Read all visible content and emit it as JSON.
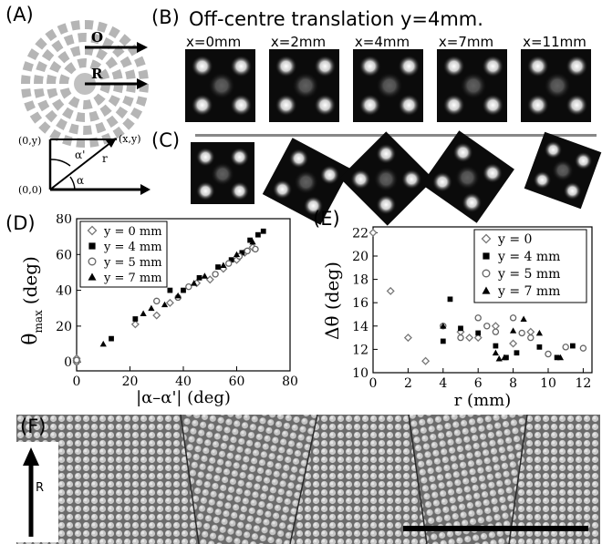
{
  "figure": {
    "panel_a": {
      "label": "(A)",
      "vector_o": "O",
      "vector_r": "R",
      "coords": {
        "oy": "(0,y)",
        "xy": "(x,y)",
        "origin": "(0,0)",
        "alpha_prime": "α'",
        "alpha": "α",
        "r": "r"
      }
    },
    "panel_b": {
      "label": "(B)",
      "title": "Off-centre translation y=4mm.",
      "x_labels": [
        "x=0mm",
        "x=2mm",
        "x=4mm",
        "x=7mm",
        "x=11mm"
      ]
    },
    "panel_c": {
      "label": "(C)",
      "rotations_deg": [
        0,
        28,
        45,
        35,
        20
      ]
    },
    "panel_f": {
      "label": "(F)",
      "arrow_label": "R"
    }
  },
  "chart_data": [
    {
      "type": "scatter",
      "panel": "(D)",
      "xlabel": "|α–α'| (deg)",
      "ylabel": "θmax (deg)",
      "xlim": [
        0,
        80
      ],
      "ylim": [
        -5,
        80
      ],
      "xticks": [
        0,
        20,
        40,
        60,
        80
      ],
      "yticks": [
        0,
        20,
        40,
        60,
        80
      ],
      "grid": false,
      "legend_position": "top-left",
      "series": [
        {
          "name": "y = 0 mm",
          "marker": "diamond-open",
          "points": [
            [
              0,
              1
            ],
            [
              0,
              0
            ],
            [
              0,
              2
            ],
            [
              22,
              21
            ],
            [
              30,
              26
            ],
            [
              35,
              33
            ],
            [
              45,
              44
            ],
            [
              50,
              46
            ],
            [
              55,
              52
            ],
            [
              60,
              57
            ],
            [
              63,
              61
            ],
            [
              66,
              64
            ]
          ]
        },
        {
          "name": "y = 4 mm",
          "marker": "square-filled",
          "points": [
            [
              13,
              13
            ],
            [
              22,
              24
            ],
            [
              35,
              40
            ],
            [
              40,
              40
            ],
            [
              46,
              47
            ],
            [
              53,
              53
            ],
            [
              58,
              57
            ],
            [
              62,
              61
            ],
            [
              65,
              68
            ],
            [
              68,
              71
            ],
            [
              70,
              73
            ]
          ]
        },
        {
          "name": "y = 5 mm",
          "marker": "circle-open",
          "points": [
            [
              0,
              0
            ],
            [
              0,
              1
            ],
            [
              30,
              34
            ],
            [
              38,
              36
            ],
            [
              42,
              42
            ],
            [
              52,
              49
            ],
            [
              57,
              55
            ],
            [
              61,
              59
            ],
            [
              64,
              62
            ],
            [
              67,
              63
            ]
          ]
        },
        {
          "name": "y = 7 mm",
          "marker": "triangle-filled",
          "points": [
            [
              10,
              10
            ],
            [
              25,
              27
            ],
            [
              28,
              30
            ],
            [
              33,
              32
            ],
            [
              38,
              37
            ],
            [
              44,
              44
            ],
            [
              48,
              48
            ],
            [
              55,
              54
            ],
            [
              60,
              60
            ],
            [
              66,
              67
            ]
          ]
        }
      ]
    },
    {
      "type": "scatter",
      "panel": "(E)",
      "xlabel": "r (mm)",
      "ylabel": "Δθ (deg)",
      "xlim": [
        0,
        12.5
      ],
      "ylim": [
        10,
        22.5
      ],
      "xticks": [
        0,
        2,
        4,
        6,
        8,
        10,
        12
      ],
      "yticks": [
        10,
        12,
        14,
        16,
        18,
        20,
        22
      ],
      "grid": false,
      "legend_position": "top-right",
      "series": [
        {
          "name": "y = 0",
          "marker": "diamond-open",
          "points": [
            [
              0,
              22
            ],
            [
              1,
              17
            ],
            [
              2,
              13
            ],
            [
              3,
              11
            ],
            [
              5,
              13.5
            ],
            [
              5.5,
              13
            ],
            [
              6,
              13
            ],
            [
              7,
              14
            ],
            [
              8,
              12.5
            ],
            [
              9,
              13.5
            ]
          ]
        },
        {
          "name": "y = 4 mm",
          "marker": "square-filled",
          "points": [
            [
              4,
              12.7
            ],
            [
              4.4,
              16.3
            ],
            [
              5,
              13.8
            ],
            [
              6,
              13.4
            ],
            [
              7,
              12.3
            ],
            [
              7.6,
              11.3
            ],
            [
              8.2,
              11.7
            ],
            [
              9.5,
              12.2
            ],
            [
              10.5,
              11.3
            ],
            [
              11.4,
              12.3
            ]
          ]
        },
        {
          "name": "y = 5 mm",
          "marker": "circle-open",
          "points": [
            [
              4,
              14
            ],
            [
              5,
              13
            ],
            [
              6,
              14.7
            ],
            [
              6.5,
              14
            ],
            [
              7,
              13.5
            ],
            [
              8,
              14.7
            ],
            [
              8.5,
              13.4
            ],
            [
              9,
              13
            ],
            [
              10,
              11.6
            ],
            [
              11,
              12.2
            ],
            [
              12,
              12.1
            ]
          ]
        },
        {
          "name": "y = 7 mm",
          "marker": "triangle-filled",
          "points": [
            [
              4,
              14
            ],
            [
              7,
              11.7
            ],
            [
              7.2,
              11.2
            ],
            [
              7.5,
              11.3
            ],
            [
              8,
              13.6
            ],
            [
              8.6,
              14.6
            ],
            [
              9.5,
              13.4
            ],
            [
              10.7,
              11.3
            ]
          ]
        }
      ]
    }
  ],
  "panel_d_label": "(D)",
  "panel_e_label": "(E)"
}
